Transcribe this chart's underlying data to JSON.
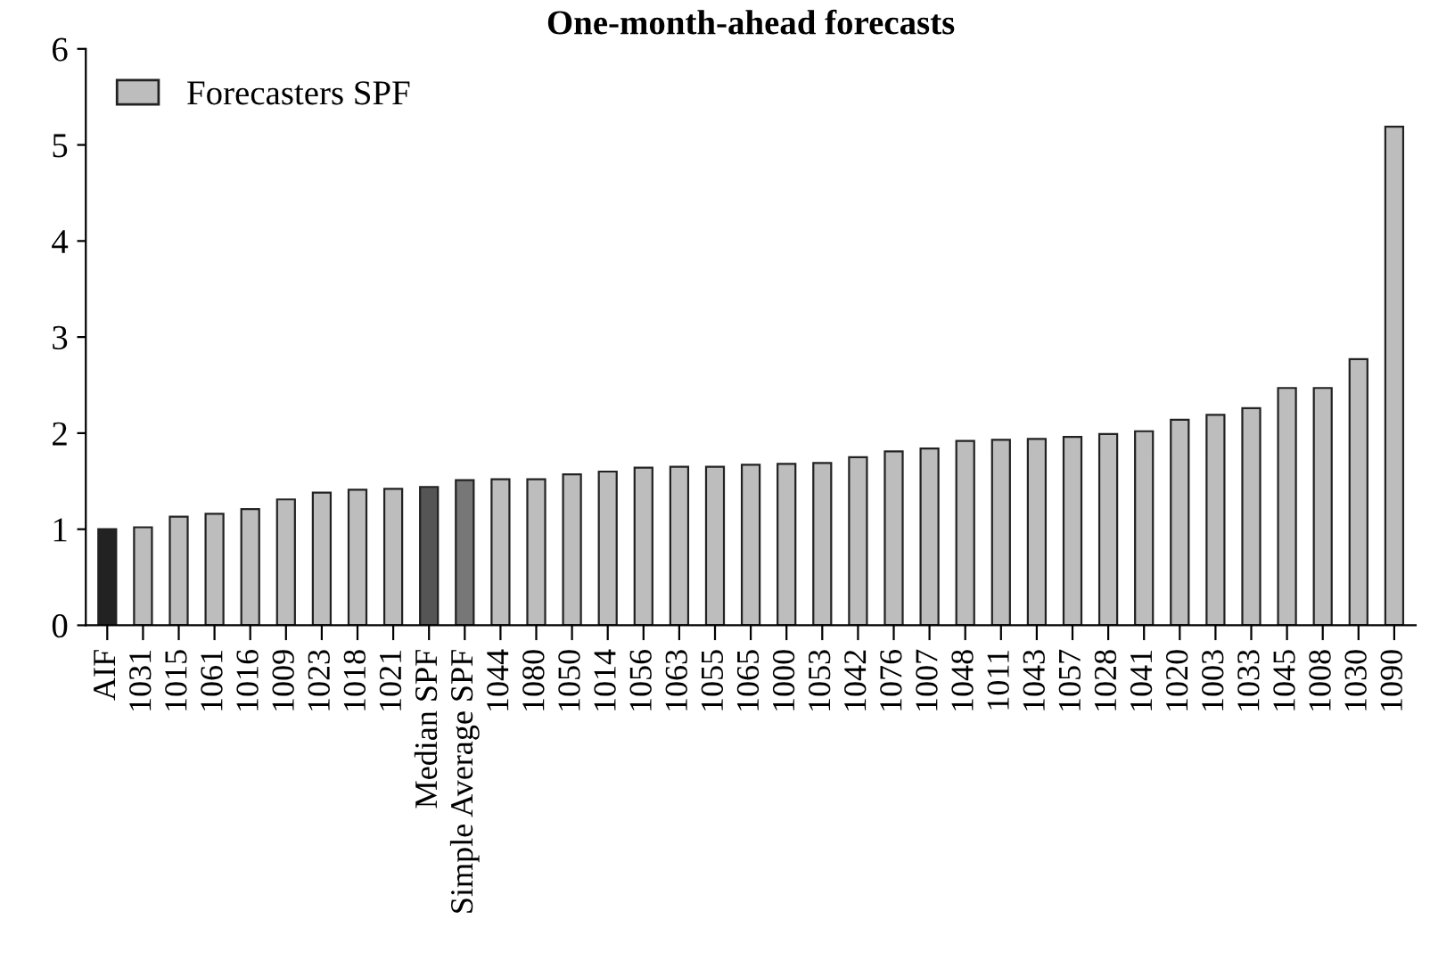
{
  "chart_data": {
    "type": "bar",
    "title": "One-month-ahead forecasts",
    "categories": [
      "AIF",
      "1031",
      "1015",
      "1061",
      "1016",
      "1009",
      "1023",
      "1018",
      "1021",
      "Median SPF",
      "Simple Average SPF",
      "1044",
      "1080",
      "1050",
      "1014",
      "1056",
      "1063",
      "1055",
      "1065",
      "1000",
      "1053",
      "1042",
      "1076",
      "1007",
      "1048",
      "1011",
      "1043",
      "1057",
      "1028",
      "1041",
      "1020",
      "1003",
      "1033",
      "1045",
      "1008",
      "1030",
      "1090"
    ],
    "series": [
      {
        "name": "Forecasters SPF",
        "color": "#bdbdbd",
        "colors": [
          "#222222",
          "#bdbdbd",
          "#bdbdbd",
          "#bdbdbd",
          "#bdbdbd",
          "#bdbdbd",
          "#bdbdbd",
          "#bdbdbd",
          "#bdbdbd",
          "#555555",
          "#777777",
          "#bdbdbd",
          "#bdbdbd",
          "#bdbdbd",
          "#bdbdbd",
          "#bdbdbd",
          "#bdbdbd",
          "#bdbdbd",
          "#bdbdbd",
          "#bdbdbd",
          "#bdbdbd",
          "#bdbdbd",
          "#bdbdbd",
          "#bdbdbd",
          "#bdbdbd",
          "#bdbdbd",
          "#bdbdbd",
          "#bdbdbd",
          "#bdbdbd",
          "#bdbdbd",
          "#bdbdbd",
          "#bdbdbd",
          "#bdbdbd",
          "#bdbdbd",
          "#bdbdbd",
          "#bdbdbd",
          "#bdbdbd"
        ],
        "values": [
          1.0,
          1.02,
          1.13,
          1.16,
          1.21,
          1.31,
          1.38,
          1.41,
          1.42,
          1.44,
          1.51,
          1.52,
          1.52,
          1.57,
          1.6,
          1.64,
          1.65,
          1.65,
          1.67,
          1.68,
          1.69,
          1.75,
          1.81,
          1.84,
          1.92,
          1.93,
          1.94,
          1.96,
          1.99,
          2.02,
          2.14,
          2.19,
          2.26,
          2.47,
          2.47,
          2.77,
          5.19
        ]
      }
    ],
    "ylim": [
      0,
      6
    ],
    "yticks": [
      0,
      1,
      2,
      3,
      4,
      5,
      6
    ],
    "grid": false,
    "legend": "upper left"
  }
}
